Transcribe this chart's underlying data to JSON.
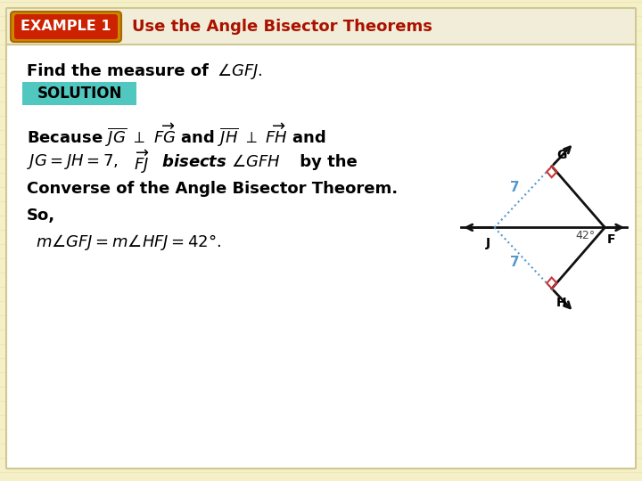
{
  "bg_color": "#f5f0c8",
  "stripe_color": "#ede8b8",
  "main_bg": "#ffffff",
  "title_text": "Use the Angle Bisector Theorems",
  "title_color": "#aa1100",
  "example_label": "EXAMPLE 1",
  "example_bg": "#cc2200",
  "example_grad_outer": "#c87820",
  "example_text_color": "#ffffff",
  "solution_label": "SOLUTION",
  "solution_bg": "#50c8c0",
  "diagram": {
    "line_color": "#111111",
    "blue_color": "#5599cc",
    "red_color": "#cc3333"
  }
}
